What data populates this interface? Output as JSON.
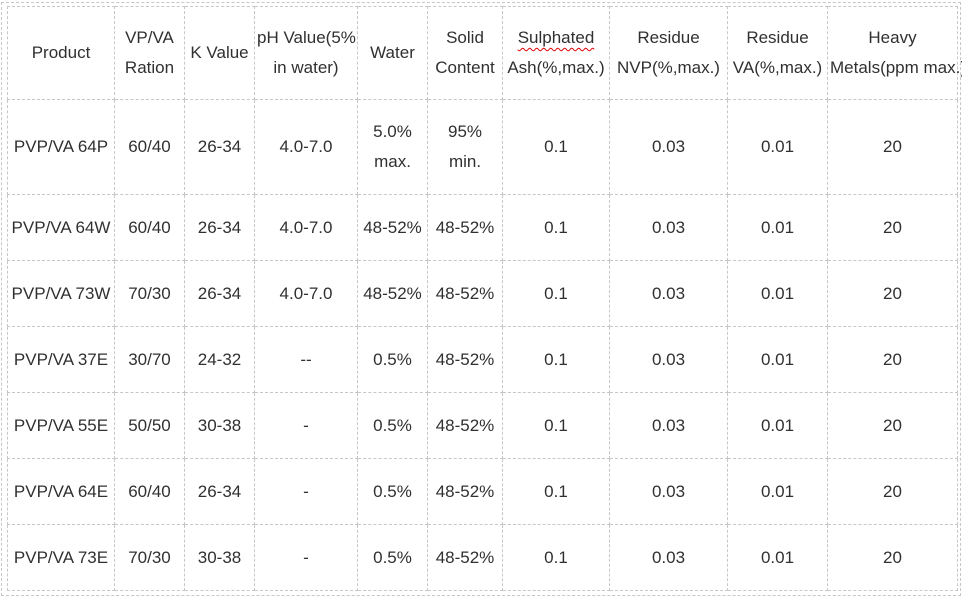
{
  "table": {
    "name": "PVP/VA product specification table",
    "columns": [
      {
        "id": "product",
        "lines": [
          {
            "text": "Product"
          }
        ]
      },
      {
        "id": "vpva-ration",
        "lines": [
          {
            "text": "VP/VA"
          },
          {
            "text": "Ration"
          }
        ]
      },
      {
        "id": "k-value",
        "lines": [
          {
            "text": "K Value"
          }
        ]
      },
      {
        "id": "ph-value",
        "lines": [
          {
            "text": "pH Value(5%"
          },
          {
            "text": "in water)"
          }
        ]
      },
      {
        "id": "water",
        "lines": [
          {
            "text": "Water"
          }
        ]
      },
      {
        "id": "solid-content",
        "lines": [
          {
            "text": "Solid"
          },
          {
            "text": "Content"
          }
        ]
      },
      {
        "id": "sulphated-ash",
        "lines": [
          {
            "text": "Sulphated",
            "misspelled": true
          },
          {
            "text": "Ash(%,max.)"
          }
        ]
      },
      {
        "id": "residue-nvp",
        "lines": [
          {
            "text": "Residue"
          },
          {
            "text": "NVP(%,max.)"
          }
        ]
      },
      {
        "id": "residue-va",
        "lines": [
          {
            "text": "Residue"
          },
          {
            "text": "VA(%,max.)"
          }
        ]
      },
      {
        "id": "heavy-metals",
        "lines": [
          {
            "text": "Heavy"
          },
          {
            "text": "Metals(ppm max.)"
          }
        ]
      }
    ],
    "rows": [
      [
        "PVP/VA 64P",
        "60/40",
        "26-34",
        "4.0-7.0",
        "5.0%\nmax.",
        "95% min.",
        "0.1",
        "0.03",
        "0.01",
        "20"
      ],
      [
        "PVP/VA 64W",
        "60/40",
        "26-34",
        "4.0-7.0",
        "48-52%",
        "48-52%",
        "0.1",
        "0.03",
        "0.01",
        "20"
      ],
      [
        "PVP/VA 73W",
        "70/30",
        "26-34",
        "4.0-7.0",
        "48-52%",
        "48-52%",
        "0.1",
        "0.03",
        "0.01",
        "20"
      ],
      [
        "PVP/VA 37E",
        "30/70",
        "24-32",
        "--",
        "0.5%",
        "48-52%",
        "0.1",
        "0.03",
        "0.01",
        "20"
      ],
      [
        "PVP/VA 55E",
        "50/50",
        "30-38",
        "-",
        "0.5%",
        "48-52%",
        "0.1",
        "0.03",
        "0.01",
        "20"
      ],
      [
        "PVP/VA 64E",
        "60/40",
        "26-34",
        "-",
        "0.5%",
        "48-52%",
        "0.1",
        "0.03",
        "0.01",
        "20"
      ],
      [
        "PVP/VA 73E",
        "70/30",
        "30-38",
        "-",
        "0.5%",
        "48-52%",
        "0.1",
        "0.03",
        "0.01",
        "20"
      ]
    ]
  },
  "colors": {
    "border": "#c7c7c7",
    "text": "#303030",
    "misspell_underline": "#e00000",
    "background": "#ffffff"
  }
}
